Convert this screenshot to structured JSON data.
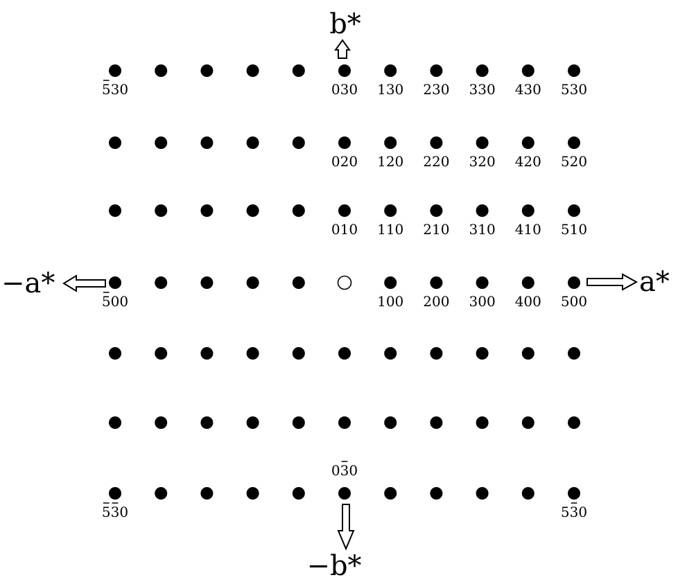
{
  "lattice": {
    "h_values": [
      -5,
      -4,
      -3,
      -2,
      -1,
      0,
      1,
      2,
      3,
      4,
      5
    ],
    "k_values": [
      3,
      2,
      1,
      0,
      -1,
      -2,
      -3
    ],
    "origin": {
      "h": 0,
      "k": 0,
      "style": "open"
    },
    "spot_color": "#000000"
  },
  "axes": {
    "b_star": "b*",
    "a_star": "a*",
    "neg_a_star": "−a*",
    "neg_b_star": "−b*"
  },
  "labels": [
    {
      "h": -5,
      "k": 3,
      "text": "530",
      "bar": "h"
    },
    {
      "h": 0,
      "k": 3,
      "text": "030"
    },
    {
      "h": 1,
      "k": 3,
      "text": "130"
    },
    {
      "h": 2,
      "k": 3,
      "text": "230"
    },
    {
      "h": 3,
      "k": 3,
      "text": "330"
    },
    {
      "h": 4,
      "k": 3,
      "text": "430"
    },
    {
      "h": 5,
      "k": 3,
      "text": "530"
    },
    {
      "h": 0,
      "k": 2,
      "text": "020"
    },
    {
      "h": 1,
      "k": 2,
      "text": "120"
    },
    {
      "h": 2,
      "k": 2,
      "text": "220"
    },
    {
      "h": 3,
      "k": 2,
      "text": "320"
    },
    {
      "h": 4,
      "k": 2,
      "text": "420"
    },
    {
      "h": 5,
      "k": 2,
      "text": "520"
    },
    {
      "h": 0,
      "k": 1,
      "text": "010"
    },
    {
      "h": 1,
      "k": 1,
      "text": "110"
    },
    {
      "h": 2,
      "k": 1,
      "text": "210"
    },
    {
      "h": 3,
      "k": 1,
      "text": "310"
    },
    {
      "h": 4,
      "k": 1,
      "text": "410"
    },
    {
      "h": 5,
      "k": 1,
      "text": "510"
    },
    {
      "h": -5,
      "k": 0,
      "text": "500",
      "bar": "h"
    },
    {
      "h": 1,
      "k": 0,
      "text": "100"
    },
    {
      "h": 2,
      "k": 0,
      "text": "200"
    },
    {
      "h": 3,
      "k": 0,
      "text": "300"
    },
    {
      "h": 4,
      "k": 0,
      "text": "400"
    },
    {
      "h": 5,
      "k": 0,
      "text": "500"
    },
    {
      "h": 0,
      "k": -3,
      "text": "030",
      "bar": "k",
      "above": true
    },
    {
      "h": -5,
      "k": -3,
      "text": "530",
      "bar": "hk"
    },
    {
      "h": 5,
      "k": -3,
      "text": "530",
      "bar": "k"
    }
  ]
}
